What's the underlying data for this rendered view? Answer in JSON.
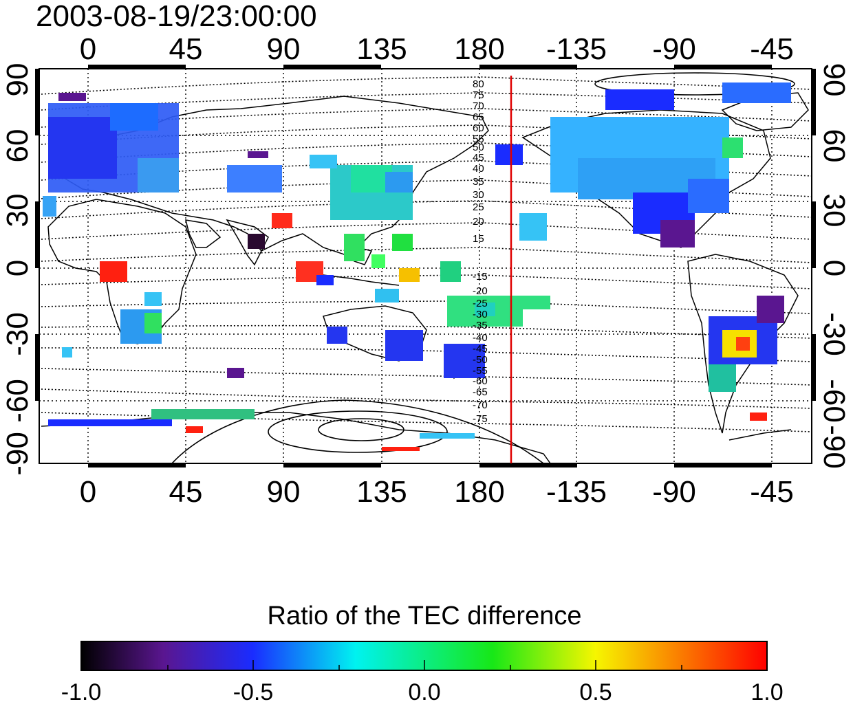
{
  "title": "2003-08-19/23:00:00",
  "colorbar": {
    "label": "Ratio of the TEC difference",
    "ticks": [
      "-1.0",
      "-0.5",
      "0.0",
      "0.5",
      "1.0"
    ],
    "stops": [
      "#000000",
      "#5a1690",
      "#1a2cff",
      "#00f2f0",
      "#17e817",
      "#f6f600",
      "#ff0000"
    ]
  },
  "axes": {
    "top_ticks": [
      "0",
      "45",
      "90",
      "135",
      "180",
      "-135",
      "-90",
      "-45"
    ],
    "bottom_ticks": [
      "0",
      "45",
      "90",
      "135",
      "180",
      "-135",
      "-90",
      "-45"
    ],
    "left_ticks": [
      "90",
      "60",
      "30",
      "0",
      "-30",
      "-60",
      "-90"
    ],
    "right_ticks": [
      "90",
      "60",
      "30",
      "0",
      "-30",
      "-60",
      "-90"
    ]
  },
  "contour_labels": [
    "80",
    "75",
    "70",
    "65",
    "60",
    "55",
    "50",
    "45",
    "40",
    "35",
    "30",
    "25",
    "20",
    "15",
    "-15",
    "-20",
    "-25",
    "-30",
    "-35",
    "-40",
    "-45",
    "-50",
    "-55",
    "-60",
    "-65",
    "-70",
    "-75"
  ],
  "terminator_longitude": -160,
  "map_extent": {
    "lon_left": -20,
    "lon_right": -25,
    "lat_top": 90,
    "lat_bottom": -90
  }
}
